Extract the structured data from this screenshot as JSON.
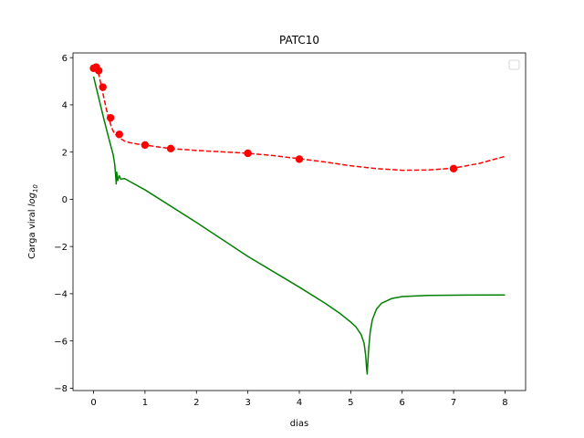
{
  "chart_data": {
    "type": "line",
    "title": "PATC10",
    "xlabel": "dias",
    "ylabel_prefix": "Carga viral ",
    "ylabel_math": "log",
    "ylabel_sub": "10",
    "xlim": [
      -0.4,
      8.4
    ],
    "ylim": [
      -8.1,
      6.2
    ],
    "xticks": [
      0,
      1,
      2,
      3,
      4,
      5,
      6,
      7,
      8
    ],
    "yticks": [
      -8,
      -6,
      -4,
      -2,
      0,
      2,
      4,
      6
    ],
    "xtick_labels": [
      "0",
      "1",
      "2",
      "3",
      "4",
      "5",
      "6",
      "7",
      "8"
    ],
    "ytick_labels": [
      "−8",
      "−6",
      "−4",
      "−2",
      "0",
      "2",
      "4",
      "6"
    ],
    "legend": "top-right",
    "grid": false,
    "colors": {
      "fit": "#ff0000",
      "observed": "#ff0000",
      "model": "#008000"
    },
    "series": [
      {
        "style": "dashed",
        "color": "#ff0000",
        "points": [
          [
            0,
            5.6
          ],
          [
            0.05,
            5.55
          ],
          [
            0.1,
            5.3
          ],
          [
            0.15,
            4.8
          ],
          [
            0.2,
            4.3
          ],
          [
            0.25,
            3.8
          ],
          [
            0.3,
            3.4
          ],
          [
            0.35,
            3.05
          ],
          [
            0.4,
            2.8
          ],
          [
            0.5,
            2.6
          ],
          [
            0.6,
            2.47
          ],
          [
            0.7,
            2.4
          ],
          [
            0.85,
            2.34
          ],
          [
            1,
            2.3
          ],
          [
            1.25,
            2.22
          ],
          [
            1.5,
            2.15
          ],
          [
            2,
            2.07
          ],
          [
            2.5,
            2.01
          ],
          [
            3,
            1.95
          ],
          [
            3.5,
            1.85
          ],
          [
            4,
            1.72
          ],
          [
            4.5,
            1.58
          ],
          [
            5,
            1.42
          ],
          [
            5.5,
            1.3
          ],
          [
            6,
            1.23
          ],
          [
            6.5,
            1.24
          ],
          [
            7,
            1.32
          ],
          [
            7.5,
            1.52
          ],
          [
            8,
            1.82
          ]
        ]
      },
      {
        "style": "markers",
        "color": "#ff0000",
        "points": [
          [
            0,
            5.55
          ],
          [
            0.05,
            5.6
          ],
          [
            0.1,
            5.45
          ],
          [
            0.18,
            4.75
          ],
          [
            0.33,
            3.45
          ],
          [
            0.5,
            2.75
          ],
          [
            1,
            2.3
          ],
          [
            1.5,
            2.15
          ],
          [
            3,
            1.95
          ],
          [
            4,
            1.7
          ],
          [
            7,
            1.3
          ]
        ]
      },
      {
        "style": "solid",
        "color": "#008000",
        "points": [
          [
            0,
            5.2
          ],
          [
            0.1,
            4.3
          ],
          [
            0.2,
            3.4
          ],
          [
            0.3,
            2.55
          ],
          [
            0.38,
            1.9
          ],
          [
            0.41,
            1.5
          ],
          [
            0.43,
            1.0
          ],
          [
            0.44,
            0.65
          ],
          [
            0.45,
            1.15
          ],
          [
            0.47,
            0.8
          ],
          [
            0.5,
            1.0
          ],
          [
            0.53,
            0.85
          ],
          [
            0.6,
            0.88
          ],
          [
            1,
            0.4
          ],
          [
            2,
            -0.98
          ],
          [
            3,
            -2.42
          ],
          [
            4,
            -3.72
          ],
          [
            4.5,
            -4.4
          ],
          [
            4.8,
            -4.85
          ],
          [
            5,
            -5.2
          ],
          [
            5.1,
            -5.4
          ],
          [
            5.2,
            -5.72
          ],
          [
            5.26,
            -6.1
          ],
          [
            5.29,
            -6.6
          ],
          [
            5.31,
            -7.2
          ],
          [
            5.32,
            -7.4
          ],
          [
            5.33,
            -7.0
          ],
          [
            5.35,
            -6.3
          ],
          [
            5.38,
            -5.6
          ],
          [
            5.42,
            -5.1
          ],
          [
            5.5,
            -4.65
          ],
          [
            5.6,
            -4.4
          ],
          [
            5.8,
            -4.2
          ],
          [
            6,
            -4.12
          ],
          [
            6.5,
            -4.07
          ],
          [
            7,
            -4.06
          ],
          [
            8,
            -4.05
          ]
        ]
      }
    ]
  }
}
